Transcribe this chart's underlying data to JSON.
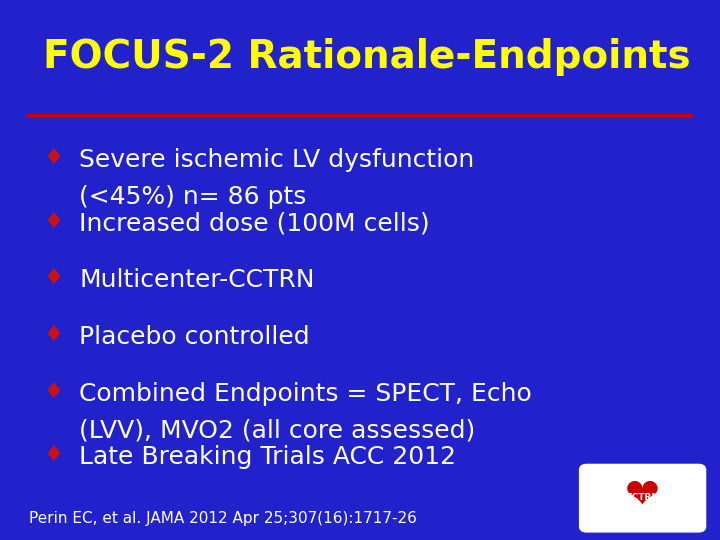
{
  "title": "FOCUS-2 Rationale-Endpoints",
  "title_color": "#FFFF00",
  "title_fontsize": 28,
  "bg_color": "#2222CC",
  "line_color": "#CC0000",
  "bullet_color": "#CC1111",
  "bullet_char": "♦",
  "text_color": "#FFFFFF",
  "text_fontsize": 18,
  "footer_text": "Perin EC, et al. JAMA 2012 Apr 25;307(16):1717-26",
  "footer_fontsize": 11,
  "footer_color": "#FFFFFF",
  "bullets": [
    [
      "Severe ischemic LV dysfunction",
      "(<45%) n= 86 pts"
    ],
    [
      "Increased dose (100M cells)"
    ],
    [
      "Multicenter-CCTRN"
    ],
    [
      "Placebo controlled"
    ],
    [
      "Combined Endpoints = SPECT, Echo",
      "(LVV), MVO2 (all core assessed)"
    ],
    [
      "Late Breaking Trials ACC 2012"
    ]
  ]
}
